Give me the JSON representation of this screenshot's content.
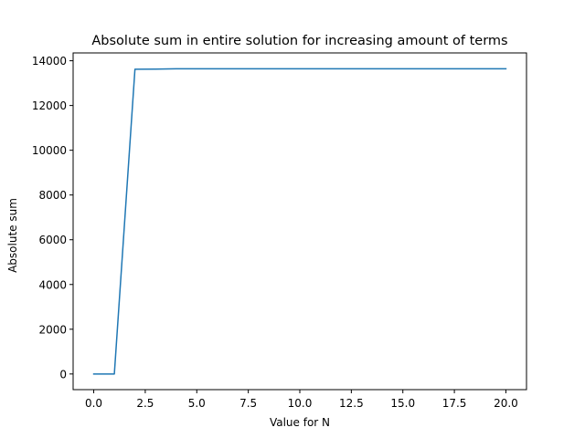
{
  "chart_data": {
    "type": "line",
    "title": "Absolute sum in entire solution for increasing amount of terms",
    "xlabel": "Value for N",
    "ylabel": "Absolute sum",
    "xlim": [
      -1.0,
      21.0
    ],
    "ylim": [
      -700,
      14350
    ],
    "xticks": [
      0.0,
      2.5,
      5.0,
      7.5,
      10.0,
      12.5,
      15.0,
      17.5,
      20.0
    ],
    "xtick_labels": [
      "0.0",
      "2.5",
      "5.0",
      "7.5",
      "10.0",
      "12.5",
      "15.0",
      "17.5",
      "20.0"
    ],
    "yticks": [
      0,
      2000,
      4000,
      6000,
      8000,
      10000,
      12000,
      14000
    ],
    "ytick_labels": [
      "0",
      "2000",
      "4000",
      "6000",
      "8000",
      "10000",
      "12000",
      "14000"
    ],
    "grid": false,
    "series": [
      {
        "color": "#1f77b4",
        "x": [
          0,
          1,
          2,
          3,
          4,
          5,
          6,
          7,
          8,
          9,
          10,
          11,
          12,
          13,
          14,
          15,
          16,
          17,
          18,
          19,
          20
        ],
        "values": [
          0,
          0,
          13620,
          13625,
          13640,
          13640,
          13640,
          13640,
          13640,
          13640,
          13640,
          13640,
          13640,
          13640,
          13640,
          13640,
          13640,
          13640,
          13640,
          13640,
          13640
        ]
      }
    ]
  }
}
